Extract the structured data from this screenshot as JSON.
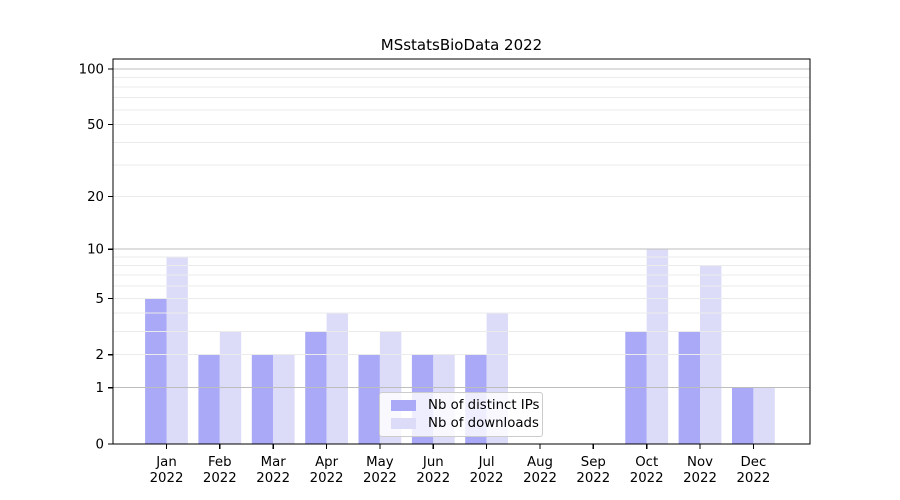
{
  "chart_data": {
    "type": "bar",
    "title": "MSstatsBioData 2022",
    "categories": [
      "Jan",
      "Feb",
      "Mar",
      "Apr",
      "May",
      "Jun",
      "Jul",
      "Aug",
      "Sep",
      "Oct",
      "Nov",
      "Dec"
    ],
    "year": "2022",
    "series": [
      {
        "name": "Nb of distinct IPs",
        "color": "#a9a9f7",
        "values": [
          5,
          2,
          2,
          3,
          2,
          2,
          2,
          0,
          0,
          3,
          3,
          1
        ]
      },
      {
        "name": "Nb of downloads",
        "color": "#dcdcf9",
        "values": [
          9,
          3,
          2,
          4,
          3,
          2,
          4,
          0,
          0,
          10,
          8,
          1
        ]
      }
    ],
    "y_axis": {
      "scale": "log1p",
      "tick_values": [
        0,
        1,
        2,
        5,
        10,
        20,
        50,
        100
      ],
      "major_grid_values": [
        1,
        10,
        100
      ],
      "minor_grid_values": [
        2,
        3,
        4,
        5,
        6,
        7,
        8,
        9,
        20,
        30,
        40,
        50,
        60,
        70,
        80,
        90
      ],
      "max": 115
    },
    "legend": {
      "position": "lower-center"
    },
    "grid": {
      "major_color": "#bdbdbd",
      "minor_color": "#ebebeb"
    },
    "axis_color": "#000000"
  }
}
